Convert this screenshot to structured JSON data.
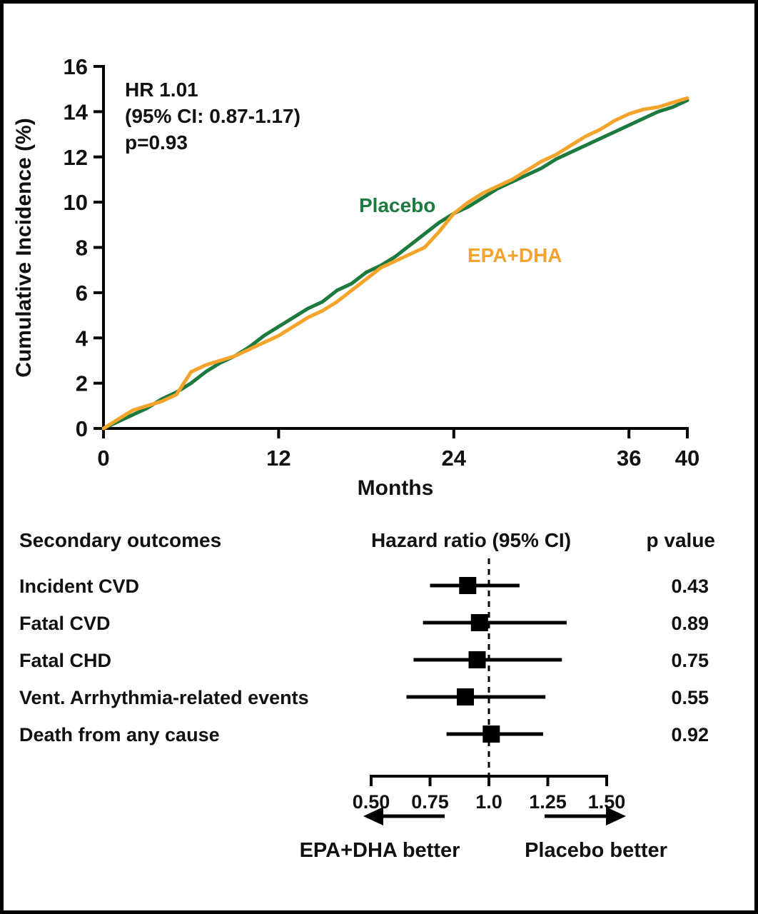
{
  "figure": {
    "background": "#ffffff",
    "border_color": "#000000",
    "text_color": "#111111"
  },
  "chart_data": [
    {
      "type": "line",
      "title": "",
      "xlabel": "Months",
      "ylabel": "Cumulative Incidence (%)",
      "xlim": [
        0,
        40
      ],
      "ylim": [
        0,
        16
      ],
      "xticks": [
        0,
        12,
        24,
        36,
        40
      ],
      "yticks": [
        0,
        2,
        4,
        6,
        8,
        10,
        12,
        14,
        16
      ],
      "grid": false,
      "annotation": {
        "lines": [
          "HR 1.01",
          "(95% CI: 0.87-1.17)",
          "p=0.93"
        ]
      },
      "series": [
        {
          "name": "Placebo",
          "color": "#1d7a3e",
          "x": [
            0,
            1,
            2,
            3,
            4,
            5,
            6,
            7,
            8,
            9,
            10,
            11,
            12,
            13,
            14,
            15,
            16,
            17,
            18,
            19,
            20,
            21,
            22,
            23,
            24,
            25,
            26,
            27,
            28,
            29,
            30,
            31,
            32,
            33,
            34,
            35,
            36,
            37,
            38,
            39,
            40
          ],
          "y": [
            0,
            0.3,
            0.6,
            0.9,
            1.3,
            1.6,
            2.0,
            2.5,
            2.9,
            3.2,
            3.6,
            4.1,
            4.5,
            4.9,
            5.3,
            5.6,
            6.1,
            6.4,
            6.9,
            7.2,
            7.6,
            8.1,
            8.6,
            9.1,
            9.5,
            9.8,
            10.2,
            10.6,
            10.9,
            11.2,
            11.5,
            11.9,
            12.2,
            12.5,
            12.8,
            13.1,
            13.4,
            13.7,
            14.0,
            14.2,
            14.5
          ]
        },
        {
          "name": "EPA+DHA",
          "color": "#f5a42b",
          "x": [
            0,
            1,
            2,
            3,
            4,
            5,
            6,
            7,
            8,
            9,
            10,
            11,
            12,
            13,
            14,
            15,
            16,
            17,
            18,
            19,
            20,
            21,
            22,
            23,
            24,
            25,
            26,
            27,
            28,
            29,
            30,
            31,
            32,
            33,
            34,
            35,
            36,
            37,
            38,
            39,
            40
          ],
          "y": [
            0,
            0.4,
            0.8,
            1.0,
            1.2,
            1.5,
            2.5,
            2.8,
            3.0,
            3.2,
            3.5,
            3.8,
            4.1,
            4.5,
            4.9,
            5.2,
            5.6,
            6.1,
            6.6,
            7.1,
            7.4,
            7.7,
            8.0,
            8.7,
            9.5,
            10.0,
            10.4,
            10.7,
            11.0,
            11.4,
            11.8,
            12.1,
            12.5,
            12.9,
            13.2,
            13.6,
            13.9,
            14.1,
            14.2,
            14.4,
            14.6
          ]
        }
      ]
    },
    {
      "type": "forest",
      "headers": {
        "outcome": "Secondary outcomes",
        "hr": "Hazard ratio (95% CI)",
        "p": "p value"
      },
      "xlim": [
        0.5,
        1.5
      ],
      "xticks": [
        0.5,
        0.75,
        1.0,
        1.25,
        1.5
      ],
      "xtick_labels": [
        "0.50",
        "0.75",
        "1.0",
        "1.25",
        "1.50"
      ],
      "reference_line": 1.0,
      "rows": [
        {
          "label": "Incident CVD",
          "hr": 0.91,
          "ci_low": 0.75,
          "ci_high": 1.13,
          "p": "0.43"
        },
        {
          "label": "Fatal CVD",
          "hr": 0.96,
          "ci_low": 0.72,
          "ci_high": 1.33,
          "p": "0.89"
        },
        {
          "label": "Fatal CHD",
          "hr": 0.95,
          "ci_low": 0.68,
          "ci_high": 1.31,
          "p": "0.75"
        },
        {
          "label": "Vent. Arrhythmia-related events",
          "hr": 0.9,
          "ci_low": 0.65,
          "ci_high": 1.24,
          "p": "0.55"
        },
        {
          "label": "Death from any cause",
          "hr": 1.01,
          "ci_low": 0.82,
          "ci_high": 1.23,
          "p": "0.92"
        }
      ],
      "direction_labels": {
        "left": "EPA+DHA better",
        "right": "Placebo better"
      }
    }
  ]
}
